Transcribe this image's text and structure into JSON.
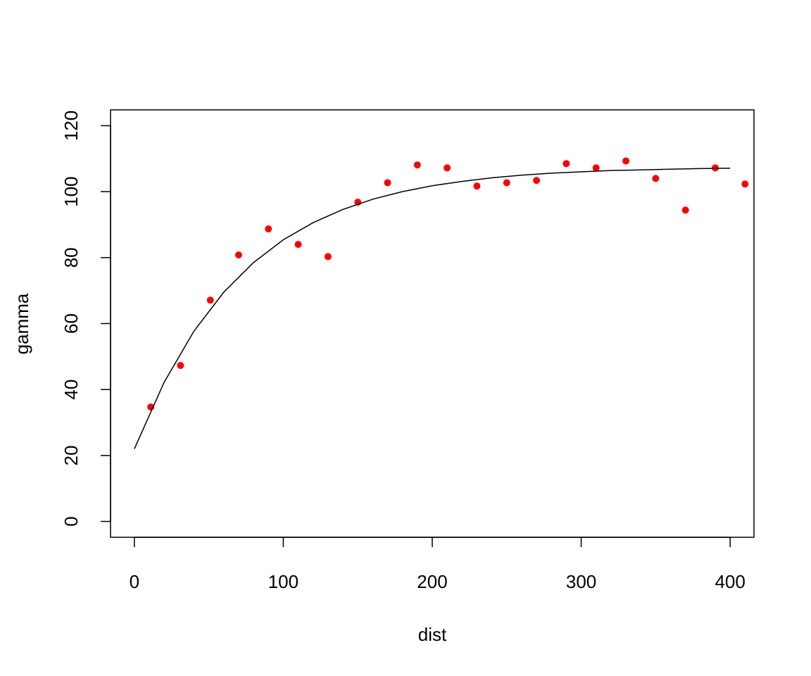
{
  "chart_data": {
    "type": "scatter",
    "x_label": "dist",
    "y_label": "gamma",
    "xlim": [
      -16,
      416
    ],
    "ylim": [
      -4.8,
      124.8
    ],
    "xticks": [
      0,
      100,
      200,
      300,
      400
    ],
    "yticks": [
      0,
      20,
      40,
      60,
      80,
      100,
      120
    ],
    "series": [
      {
        "type": "scatter",
        "color": "#ff0000",
        "x": [
          11,
          31,
          51,
          70,
          90,
          110,
          130,
          150,
          170,
          190,
          210,
          230,
          250,
          270,
          290,
          310,
          330,
          350,
          370,
          390,
          410
        ],
        "values": [
          34.7,
          47.3,
          67.1,
          80.8,
          88.7,
          84.0,
          80.3,
          96.8,
          102.7,
          108.1,
          107.2,
          101.7,
          102.7,
          103.4,
          108.5,
          107.2,
          109.3,
          104.0,
          94.4,
          107.2,
          102.3
        ]
      },
      {
        "type": "line",
        "color": "#000000",
        "x": [
          0,
          20,
          40,
          60,
          80,
          100,
          120,
          140,
          160,
          180,
          200,
          220,
          240,
          260,
          280,
          300,
          320,
          340,
          360,
          380,
          400
        ],
        "values": [
          22.0,
          42.2,
          57.7,
          69.5,
          78.5,
          85.4,
          90.6,
          94.6,
          97.7,
          100.0,
          101.8,
          103.1,
          104.2,
          105.0,
          105.6,
          106.0,
          106.4,
          106.6,
          106.8,
          107.0,
          107.1
        ]
      }
    ]
  }
}
